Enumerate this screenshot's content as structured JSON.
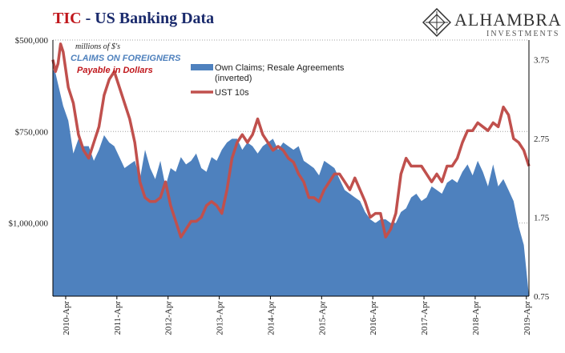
{
  "header": {
    "title_brand": "TIC",
    "title_rest": "- US Banking Data"
  },
  "logo": {
    "name": "ALHAMBRA",
    "subtitle": "INVESTMENTS"
  },
  "colors": {
    "area": "#4e81be",
    "line": "#c0504d",
    "note_blue": "#4f81bd",
    "note_red": "#c0171c",
    "grid": "#a0a0a0"
  },
  "chart_data": {
    "type": "area",
    "annotations": {
      "units": "millions of $'s",
      "claims": "CLAIMS ON FOREIGNERS",
      "payable": "Payable in Dollars"
    },
    "legend": {
      "placement": "top-center",
      "area_label_line1": "Own Claims; Resale Agreements",
      "area_label_line2": "(inverted)",
      "line_label": "UST 10s"
    },
    "x_axis": {
      "ticks": [
        "2010-Apr",
        "2011-Apr",
        "2012-Apr",
        "2013-Apr",
        "2014-Apr",
        "2015-Apr",
        "2016-Apr",
        "2017-Apr",
        "2018-Apr",
        "2019-Apr"
      ],
      "range": [
        2010.0,
        2019.3
      ]
    },
    "y_left": {
      "ticks": [
        "$500,000",
        "$750,000",
        "$1,000,000"
      ],
      "tick_values": [
        500000,
        750000,
        1000000
      ],
      "range": [
        500000,
        1200000
      ],
      "inverted": true
    },
    "y_right": {
      "ticks": [
        "3.75",
        "2.75",
        "1.75",
        "0.75"
      ],
      "tick_values": [
        3.75,
        2.75,
        1.75,
        0.75
      ],
      "range": [
        0.75,
        4.0
      ]
    },
    "grid": true,
    "series": [
      {
        "name": "Own Claims; Resale Agreements (inverted)",
        "axis": "left",
        "x": [
          2010.0,
          2010.05,
          2010.1,
          2010.2,
          2010.3,
          2010.4,
          2010.5,
          2010.6,
          2010.7,
          2010.8,
          2010.9,
          2011.0,
          2011.1,
          2011.2,
          2011.3,
          2011.4,
          2011.5,
          2011.6,
          2011.7,
          2011.8,
          2011.9,
          2012.0,
          2012.1,
          2012.2,
          2012.3,
          2012.4,
          2012.5,
          2012.6,
          2012.7,
          2012.8,
          2012.9,
          2013.0,
          2013.1,
          2013.2,
          2013.3,
          2013.4,
          2013.5,
          2013.6,
          2013.7,
          2013.8,
          2013.9,
          2014.0,
          2014.1,
          2014.2,
          2014.3,
          2014.4,
          2014.5,
          2014.6,
          2014.7,
          2014.8,
          2014.9,
          2015.0,
          2015.1,
          2015.2,
          2015.3,
          2015.4,
          2015.5,
          2015.6,
          2015.7,
          2015.8,
          2015.9,
          2016.0,
          2016.1,
          2016.2,
          2016.3,
          2016.4,
          2016.5,
          2016.6,
          2016.7,
          2016.8,
          2016.9,
          2017.0,
          2017.1,
          2017.2,
          2017.3,
          2017.4,
          2017.5,
          2017.6,
          2017.7,
          2017.8,
          2017.9,
          2018.0,
          2018.1,
          2018.2,
          2018.3,
          2018.4,
          2018.5,
          2018.6,
          2018.7,
          2018.8,
          2018.9,
          2019.0,
          2019.1,
          2019.2,
          2019.3
        ],
        "values": [
          580000,
          590000,
          620000,
          680000,
          720000,
          810000,
          770000,
          790000,
          790000,
          830000,
          800000,
          760000,
          780000,
          790000,
          820000,
          850000,
          840000,
          830000,
          880000,
          800000,
          850000,
          880000,
          830000,
          900000,
          850000,
          860000,
          820000,
          840000,
          830000,
          810000,
          850000,
          860000,
          820000,
          830000,
          800000,
          780000,
          770000,
          770000,
          800000,
          780000,
          790000,
          810000,
          790000,
          780000,
          770000,
          800000,
          780000,
          790000,
          800000,
          790000,
          830000,
          840000,
          850000,
          870000,
          830000,
          840000,
          850000,
          880000,
          910000,
          920000,
          930000,
          940000,
          970000,
          990000,
          1000000,
          990000,
          990000,
          1000000,
          1000000,
          970000,
          960000,
          930000,
          920000,
          940000,
          930000,
          900000,
          910000,
          920000,
          890000,
          880000,
          890000,
          860000,
          840000,
          870000,
          830000,
          860000,
          900000,
          840000,
          900000,
          880000,
          910000,
          940000,
          1010000,
          1060000,
          1200000
        ]
      },
      {
        "name": "UST 10s",
        "axis": "right",
        "x": [
          2010.0,
          2010.05,
          2010.1,
          2010.15,
          2010.2,
          2010.3,
          2010.4,
          2010.5,
          2010.6,
          2010.7,
          2010.8,
          2010.9,
          2011.0,
          2011.1,
          2011.2,
          2011.3,
          2011.4,
          2011.5,
          2011.6,
          2011.7,
          2011.8,
          2011.9,
          2012.0,
          2012.1,
          2012.2,
          2012.3,
          2012.4,
          2012.5,
          2012.6,
          2012.7,
          2012.8,
          2012.9,
          2013.0,
          2013.1,
          2013.2,
          2013.3,
          2013.4,
          2013.5,
          2013.6,
          2013.7,
          2013.8,
          2013.9,
          2014.0,
          2014.1,
          2014.2,
          2014.3,
          2014.4,
          2014.5,
          2014.6,
          2014.7,
          2014.8,
          2014.9,
          2015.0,
          2015.1,
          2015.2,
          2015.3,
          2015.4,
          2015.5,
          2015.6,
          2015.7,
          2015.8,
          2015.9,
          2016.0,
          2016.1,
          2016.2,
          2016.3,
          2016.4,
          2016.5,
          2016.6,
          2016.7,
          2016.8,
          2016.9,
          2017.0,
          2017.1,
          2017.2,
          2017.3,
          2017.4,
          2017.5,
          2017.6,
          2017.7,
          2017.8,
          2017.9,
          2018.0,
          2018.1,
          2018.2,
          2018.3,
          2018.4,
          2018.5,
          2018.6,
          2018.7,
          2018.8,
          2018.9,
          2019.0,
          2019.1,
          2019.2,
          2019.3
        ],
        "values": [
          3.75,
          3.6,
          3.7,
          3.95,
          3.85,
          3.4,
          3.2,
          2.8,
          2.6,
          2.5,
          2.7,
          2.9,
          3.3,
          3.5,
          3.6,
          3.4,
          3.2,
          3.0,
          2.7,
          2.2,
          2.0,
          1.95,
          1.95,
          2.0,
          2.2,
          1.9,
          1.7,
          1.5,
          1.6,
          1.7,
          1.7,
          1.75,
          1.9,
          1.95,
          1.9,
          1.8,
          2.1,
          2.5,
          2.7,
          2.8,
          2.7,
          2.8,
          3.0,
          2.8,
          2.7,
          2.6,
          2.65,
          2.6,
          2.5,
          2.45,
          2.3,
          2.2,
          2.0,
          2.0,
          1.95,
          2.1,
          2.2,
          2.3,
          2.3,
          2.2,
          2.1,
          2.25,
          2.1,
          1.95,
          1.75,
          1.8,
          1.8,
          1.5,
          1.6,
          1.8,
          2.3,
          2.5,
          2.4,
          2.4,
          2.4,
          2.3,
          2.2,
          2.3,
          2.2,
          2.4,
          2.4,
          2.5,
          2.7,
          2.85,
          2.85,
          2.95,
          2.9,
          2.85,
          2.95,
          2.9,
          3.15,
          3.05,
          2.75,
          2.7,
          2.6,
          2.4
        ]
      }
    ]
  }
}
